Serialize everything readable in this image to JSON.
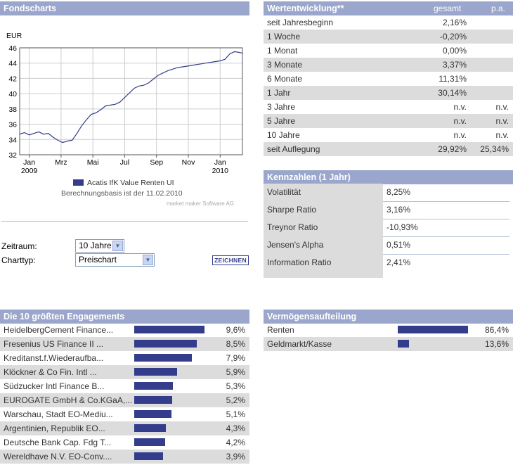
{
  "fondscharts": {
    "title": "Fondscharts",
    "legend_label": "Acatis IfK Value Renten UI",
    "basis_text": "Berechnungsbasis ist der 11.02.2010",
    "credit": "market maker Software AG",
    "series_color": "#333d8c",
    "chart_data": {
      "type": "line",
      "title": "",
      "ylabel": "EUR",
      "ylim": [
        32,
        46
      ],
      "y_ticks": [
        "32",
        "34",
        "36",
        "38",
        "40",
        "42",
        "44",
        "46"
      ],
      "x_ticks": [
        {
          "label": "Jan",
          "sublabel": "2009",
          "month": 0
        },
        {
          "label": "Mrz",
          "sublabel": "",
          "month": 2
        },
        {
          "label": "Mai",
          "sublabel": "",
          "month": 4
        },
        {
          "label": "Jul",
          "sublabel": "",
          "month": 6
        },
        {
          "label": "Sep",
          "sublabel": "",
          "month": 8
        },
        {
          "label": "Nov",
          "sublabel": "",
          "month": 10
        },
        {
          "label": "Jan",
          "sublabel": "2010",
          "month": 12
        }
      ],
      "xlim": [
        -0.6,
        13.4
      ],
      "series": [
        {
          "name": "Acatis IfK Value Renten UI",
          "points": [
            [
              -0.6,
              34.7
            ],
            [
              -0.3,
              34.9
            ],
            [
              0.0,
              34.6
            ],
            [
              0.3,
              34.8
            ],
            [
              0.6,
              35.0
            ],
            [
              0.9,
              34.7
            ],
            [
              1.2,
              34.8
            ],
            [
              1.5,
              34.3
            ],
            [
              1.8,
              33.9
            ],
            [
              2.1,
              33.6
            ],
            [
              2.4,
              33.8
            ],
            [
              2.7,
              33.9
            ],
            [
              3.0,
              34.8
            ],
            [
              3.3,
              35.8
            ],
            [
              3.6,
              36.6
            ],
            [
              3.9,
              37.3
            ],
            [
              4.2,
              37.5
            ],
            [
              4.5,
              37.9
            ],
            [
              4.8,
              38.4
            ],
            [
              5.1,
              38.5
            ],
            [
              5.4,
              38.6
            ],
            [
              5.7,
              38.9
            ],
            [
              6.0,
              39.5
            ],
            [
              6.3,
              40.1
            ],
            [
              6.6,
              40.7
            ],
            [
              6.9,
              41.0
            ],
            [
              7.2,
              41.1
            ],
            [
              7.5,
              41.4
            ],
            [
              7.8,
              41.9
            ],
            [
              8.1,
              42.4
            ],
            [
              8.4,
              42.7
            ],
            [
              8.7,
              43.0
            ],
            [
              9.0,
              43.2
            ],
            [
              9.3,
              43.4
            ],
            [
              9.6,
              43.5
            ],
            [
              9.9,
              43.6
            ],
            [
              10.2,
              43.7
            ],
            [
              10.5,
              43.8
            ],
            [
              10.8,
              43.9
            ],
            [
              11.1,
              44.0
            ],
            [
              11.4,
              44.1
            ],
            [
              11.7,
              44.2
            ],
            [
              12.0,
              44.3
            ],
            [
              12.3,
              44.5
            ],
            [
              12.6,
              45.2
            ],
            [
              12.9,
              45.5
            ],
            [
              13.2,
              45.4
            ],
            [
              13.4,
              45.3
            ]
          ]
        }
      ]
    }
  },
  "controls": {
    "zeitraum_label": "Zeitraum:",
    "zeitraum_value": "10 Jahre",
    "charttyp_label": "Charttyp:",
    "charttyp_value": "Preischart",
    "zeichnen_label": "ZEICHNEN"
  },
  "wertentwicklung": {
    "title": "Wertentwicklung**",
    "col_gesamt": "gesamt",
    "col_pa": "p.a.",
    "rows": [
      {
        "label": "seit Jahresbeginn",
        "gesamt": "2,16%",
        "pa": ""
      },
      {
        "label": "1 Woche",
        "gesamt": "-0,20%",
        "pa": ""
      },
      {
        "label": "1 Monat",
        "gesamt": "0,00%",
        "pa": ""
      },
      {
        "label": "3 Monate",
        "gesamt": "3,37%",
        "pa": ""
      },
      {
        "label": "6 Monate",
        "gesamt": "11,31%",
        "pa": ""
      },
      {
        "label": "1 Jahr",
        "gesamt": "30,14%",
        "pa": ""
      },
      {
        "label": "3 Jahre",
        "gesamt": "n.v.",
        "pa": "n.v."
      },
      {
        "label": "5 Jahre",
        "gesamt": "n.v.",
        "pa": "n.v."
      },
      {
        "label": "10 Jahre",
        "gesamt": "n.v.",
        "pa": "n.v."
      },
      {
        "label": "seit Auflegung",
        "gesamt": "29,92%",
        "pa": "25,34%"
      }
    ]
  },
  "kennzahlen": {
    "title": "Kennzahlen (1 Jahr)",
    "rows": [
      {
        "label": "Volatilität",
        "value": "8,25%"
      },
      {
        "label": "Sharpe Ratio",
        "value": "3,16%"
      },
      {
        "label": "Treynor Ratio",
        "value": "-10,93%"
      },
      {
        "label": "Jensen's Alpha",
        "value": "0,51%"
      },
      {
        "label": "Information Ratio",
        "value": "2,41%"
      }
    ]
  },
  "engagements": {
    "title": "Die 10 größten Engagements",
    "bar_color": "#333d8c",
    "rows": [
      {
        "name": "HeidelbergCement Finance...",
        "value": "9,6%",
        "pct": 9.6
      },
      {
        "name": "Fresenius US Finance II ...",
        "value": "8,5%",
        "pct": 8.5
      },
      {
        "name": "Kreditanst.f.Wiederaufba...",
        "value": "7,9%",
        "pct": 7.9
      },
      {
        "name": "Klöckner & Co Fin. Intl ...",
        "value": "5,9%",
        "pct": 5.9
      },
      {
        "name": "Südzucker Intl Finance B...",
        "value": "5,3%",
        "pct": 5.3
      },
      {
        "name": "EUROGATE GmbH & Co.KGaA,...",
        "value": "5,2%",
        "pct": 5.2
      },
      {
        "name": "Warschau, Stadt EO-Mediu...",
        "value": "5,1%",
        "pct": 5.1
      },
      {
        "name": "Argentinien, Republik EO...",
        "value": "4,3%",
        "pct": 4.3
      },
      {
        "name": "Deutsche Bank Cap. Fdg T...",
        "value": "4,2%",
        "pct": 4.2
      },
      {
        "name": "Wereldhave N.V. EO-Conv....",
        "value": "3,9%",
        "pct": 3.9
      }
    ]
  },
  "vermoegen": {
    "title": "Vermögensaufteilung",
    "rows": [
      {
        "name": "Renten",
        "value": "86,4%",
        "pct": 86.4
      },
      {
        "name": "Geldmarkt/Kasse",
        "value": "13,6%",
        "pct": 13.6
      }
    ]
  }
}
